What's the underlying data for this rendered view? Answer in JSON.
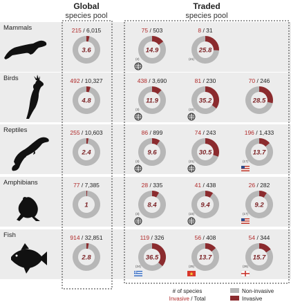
{
  "header": {
    "global_title": "Global",
    "global_sub": "species pool",
    "traded_title": "Traded",
    "traded_sub": "species pool"
  },
  "colors": {
    "invasive": "#8b2b2e",
    "non_invasive": "#b7b7b7",
    "row_bg": "#ececec",
    "inv_text": "#b02a2a"
  },
  "legend": {
    "count_label": "# of species",
    "invasive_word": "Invasive",
    "total_word": " / Total",
    "non_invasive": "Non-invasive",
    "invasive": "Invasive"
  },
  "chart_data": {
    "type": "pie",
    "rows": [
      {
        "name": "Mammals",
        "global": {
          "invasive": 215,
          "total": 6015,
          "invasive_label": "215",
          "total_label": "6,015",
          "percent": 3.6,
          "percent_label": "3.6"
        },
        "traded": [
          {
            "invasive": 75,
            "total": 503,
            "invasive_label": "75",
            "total_label": "503",
            "percent": 14.9,
            "percent_label": "14.9",
            "source": "(2)",
            "icon": "globe-icon"
          },
          {
            "invasive": 8,
            "total": 31,
            "invasive_label": "8",
            "total_label": "31",
            "percent": 25.8,
            "percent_label": "25.8",
            "source": "(21)",
            "icon": ""
          }
        ]
      },
      {
        "name": "Birds",
        "global": {
          "invasive": 492,
          "total": 10327,
          "invasive_label": "492",
          "total_label": "10,327",
          "percent": 4.8,
          "percent_label": "4.8"
        },
        "traded": [
          {
            "invasive": 438,
            "total": 3690,
            "invasive_label": "438",
            "total_label": "3,690",
            "percent": 11.9,
            "percent_label": "11.9",
            "source": "(3)",
            "icon": "globe-icon"
          },
          {
            "invasive": 81,
            "total": 230,
            "invasive_label": "81",
            "total_label": "230",
            "percent": 35.2,
            "percent_label": "35.2",
            "source": "(22)",
            "icon": "globe-icon"
          },
          {
            "invasive": 70,
            "total": 246,
            "invasive_label": "70",
            "total_label": "246",
            "percent": 28.5,
            "percent_label": "28.5",
            "source": "",
            "icon": ""
          }
        ]
      },
      {
        "name": "Reptiles",
        "global": {
          "invasive": 255,
          "total": 10603,
          "invasive_label": "255",
          "total_label": "10,603",
          "percent": 2.4,
          "percent_label": "2.4"
        },
        "traded": [
          {
            "invasive": 86,
            "total": 899,
            "invasive_label": "86",
            "total_label": "899",
            "percent": 9.6,
            "percent_label": "9.6",
            "source": "(3)",
            "icon": "globe-icon"
          },
          {
            "invasive": 74,
            "total": 243,
            "invasive_label": "74",
            "total_label": "243",
            "percent": 30.5,
            "percent_label": "30.5",
            "source": "(21)",
            "icon": "globe-icon"
          },
          {
            "invasive": 196,
            "total": 1433,
            "invasive_label": "196",
            "total_label": "1,433",
            "percent": 13.7,
            "percent_label": "13.7",
            "source": "(17)",
            "icon": "us-flag-icon"
          }
        ]
      },
      {
        "name": "Amphibians",
        "global": {
          "invasive": 77,
          "total": 7385,
          "invasive_label": "77",
          "total_label": "7,385",
          "percent": 1,
          "percent_label": "1"
        },
        "traded": [
          {
            "invasive": 28,
            "total": 335,
            "invasive_label": "28",
            "total_label": "335",
            "percent": 8.4,
            "percent_label": "8.4",
            "source": "(3)",
            "icon": "globe-icon"
          },
          {
            "invasive": 41,
            "total": 438,
            "invasive_label": "41",
            "total_label": "438",
            "percent": 9.4,
            "percent_label": "9.4",
            "source": "(23)",
            "icon": "globe-icon"
          },
          {
            "invasive": 26,
            "total": 282,
            "invasive_label": "26",
            "total_label": "282",
            "percent": 9.2,
            "percent_label": "9.2",
            "source": "(17)",
            "icon": "us-flag-icon"
          }
        ]
      },
      {
        "name": "Fish",
        "global": {
          "invasive": 914,
          "total": 32851,
          "invasive_label": "914",
          "total_label": "32,851",
          "percent": 2.8,
          "percent_label": "2.8"
        },
        "traded": [
          {
            "invasive": 119,
            "total": 326,
            "invasive_label": "119",
            "total_label": "326",
            "percent": 36.5,
            "percent_label": "36.5",
            "source": "(24)",
            "icon": "greek-flag-icon"
          },
          {
            "invasive": 56,
            "total": 408,
            "invasive_label": "56",
            "total_label": "408",
            "percent": 13.7,
            "percent_label": "13.7",
            "source": "(25)",
            "icon": "vietnam-flag-icon"
          },
          {
            "invasive": 54,
            "total": 344,
            "invasive_label": "54",
            "total_label": "344",
            "percent": 15.7,
            "percent_label": "15.7",
            "source": "(26)",
            "icon": "england-flag-icon"
          }
        ]
      }
    ]
  }
}
